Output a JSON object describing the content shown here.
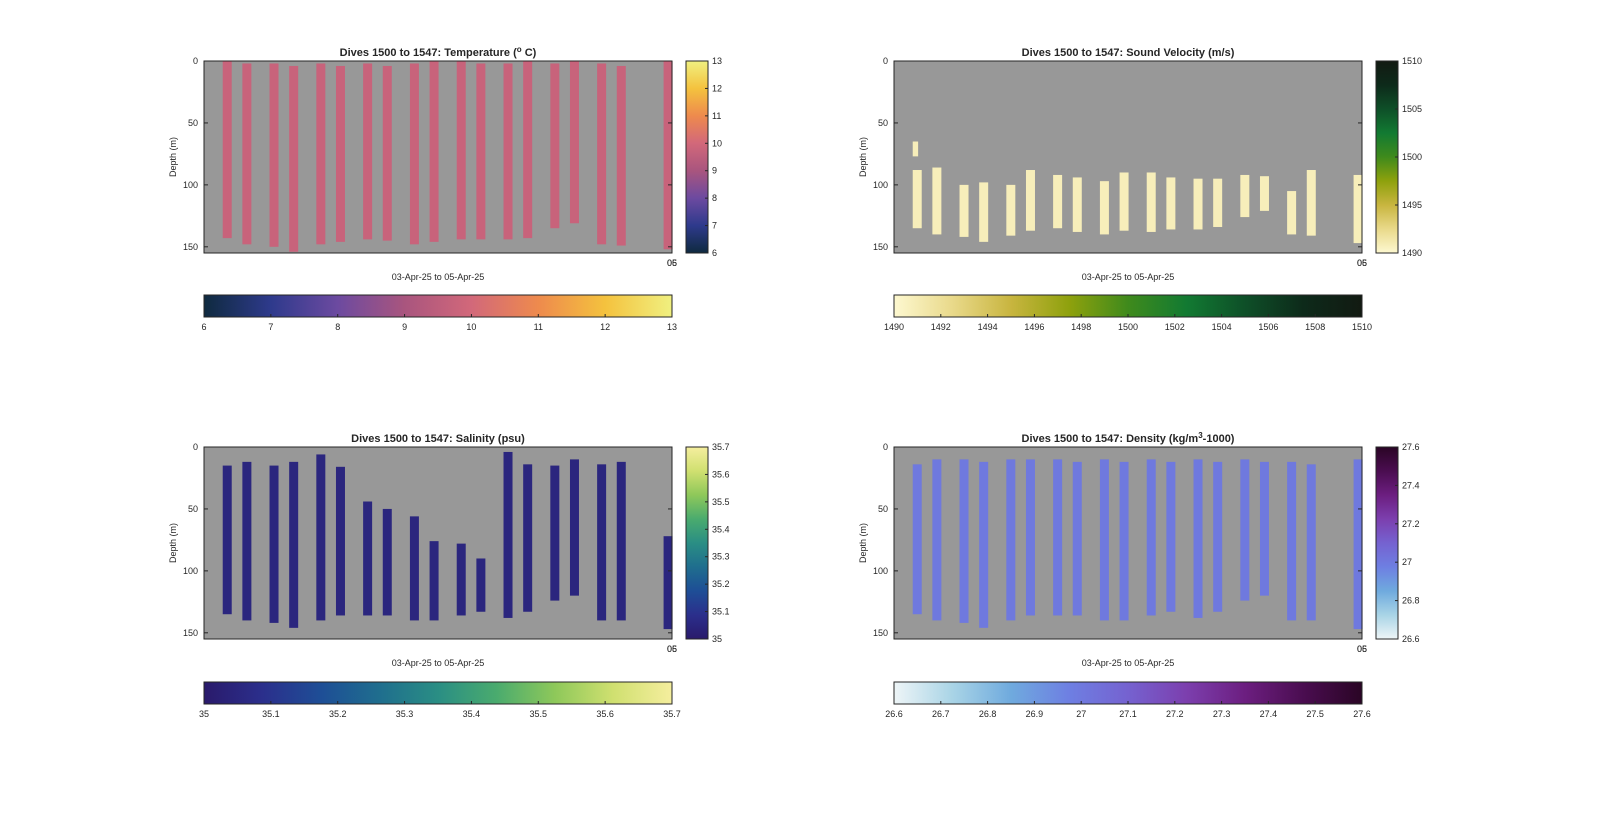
{
  "colors": {
    "background": "#ffffff",
    "nodata": "#989898",
    "axis": "#262626"
  },
  "chart_data": [
    {
      "type": "heatmap",
      "title": "Dives 1500 to 1547: Temperature (",
      "title_sup": "o",
      "title_tail": " C)",
      "xlabel": "03-Apr-25 to 05-Apr-25",
      "ylabel": "Depth (m)",
      "ylim": [
        155,
        0
      ],
      "yticks": [
        "0",
        "50",
        "100",
        "150"
      ],
      "xtick_labels": [
        "05",
        "06"
      ],
      "colormap": [
        "#0f2a3f",
        "#2e3a8c",
        "#6c4aa0",
        "#a9557e",
        "#d2687a",
        "#ee8a4d",
        "#f4c23e",
        "#f0f080"
      ],
      "clim": [
        6,
        13
      ],
      "colorbar_ticks": [
        "6",
        "7",
        "8",
        "9",
        "10",
        "11",
        "12",
        "13"
      ],
      "vertical_colorbar_ticks": [
        "6",
        "7",
        "8",
        "9",
        "10",
        "11",
        "12",
        "13"
      ],
      "field_value": 9.75,
      "columns": [
        {
          "x": 0.04,
          "top": 0,
          "bottom": 143
        },
        {
          "x": 0.082,
          "top": 2,
          "bottom": 148
        },
        {
          "x": 0.14,
          "top": 2,
          "bottom": 150
        },
        {
          "x": 0.182,
          "top": 4,
          "bottom": 154
        },
        {
          "x": 0.24,
          "top": 2,
          "bottom": 148
        },
        {
          "x": 0.282,
          "top": 4,
          "bottom": 146
        },
        {
          "x": 0.34,
          "top": 2,
          "bottom": 144
        },
        {
          "x": 0.382,
          "top": 4,
          "bottom": 145
        },
        {
          "x": 0.44,
          "top": 2,
          "bottom": 148
        },
        {
          "x": 0.482,
          "top": 0,
          "bottom": 146
        },
        {
          "x": 0.54,
          "top": 0,
          "bottom": 144
        },
        {
          "x": 0.582,
          "top": 2,
          "bottom": 144
        },
        {
          "x": 0.64,
          "top": 2,
          "bottom": 144
        },
        {
          "x": 0.682,
          "top": 0,
          "bottom": 143
        },
        {
          "x": 0.74,
          "top": 2,
          "bottom": 135
        },
        {
          "x": 0.782,
          "top": 0,
          "bottom": 131
        },
        {
          "x": 0.84,
          "top": 2,
          "bottom": 148
        },
        {
          "x": 0.882,
          "top": 4,
          "bottom": 149
        },
        {
          "x": 0.982,
          "top": 0,
          "bottom": 152
        }
      ]
    },
    {
      "type": "heatmap",
      "title": "Dives 1500 to 1547: Sound Velocity (m/s)",
      "title_sup": "",
      "title_tail": "",
      "xlabel": "03-Apr-25 to 05-Apr-25",
      "ylabel": "Depth (m)",
      "ylim": [
        155,
        0
      ],
      "yticks": [
        "0",
        "50",
        "100",
        "150"
      ],
      "xtick_labels": [
        "05",
        "06"
      ],
      "colormap": [
        "#fdf8d0",
        "#e9d98a",
        "#c8b53f",
        "#8ea10d",
        "#3f8a1c",
        "#127a32",
        "#0e4f28",
        "#0d2a1a",
        "#121a12"
      ],
      "clim": [
        1490,
        1510
      ],
      "colorbar_ticks": [
        "1490",
        "1492",
        "1494",
        "1496",
        "1498",
        "1500",
        "1502",
        "1504",
        "1506",
        "1508",
        "1510"
      ],
      "vertical_colorbar_ticks": [
        "1490",
        "1495",
        "1500",
        "1505",
        "1510"
      ],
      "field_value": 1490.8,
      "columns": [
        {
          "x": 0.04,
          "top": 88,
          "bottom": 135
        },
        {
          "x": 0.082,
          "top": 86,
          "bottom": 140
        },
        {
          "x": 0.14,
          "top": 100,
          "bottom": 142
        },
        {
          "x": 0.182,
          "top": 98,
          "bottom": 146
        },
        {
          "x": 0.24,
          "top": 100,
          "bottom": 141
        },
        {
          "x": 0.282,
          "top": 88,
          "bottom": 137
        },
        {
          "x": 0.34,
          "top": 92,
          "bottom": 135
        },
        {
          "x": 0.382,
          "top": 94,
          "bottom": 138
        },
        {
          "x": 0.44,
          "top": 97,
          "bottom": 140
        },
        {
          "x": 0.482,
          "top": 90,
          "bottom": 137
        },
        {
          "x": 0.54,
          "top": 90,
          "bottom": 138
        },
        {
          "x": 0.582,
          "top": 94,
          "bottom": 136
        },
        {
          "x": 0.64,
          "top": 95,
          "bottom": 136
        },
        {
          "x": 0.682,
          "top": 95,
          "bottom": 134
        },
        {
          "x": 0.74,
          "top": 92,
          "bottom": 126
        },
        {
          "x": 0.782,
          "top": 93,
          "bottom": 121
        },
        {
          "x": 0.84,
          "top": 105,
          "bottom": 140
        },
        {
          "x": 0.882,
          "top": 88,
          "bottom": 141
        },
        {
          "x": 0.982,
          "top": 92,
          "bottom": 147
        }
      ],
      "patches": [
        {
          "x": 0.04,
          "top": 65,
          "bottom": 77
        }
      ]
    },
    {
      "type": "heatmap",
      "title": "Dives 1500 to 1547: Salinity (psu)",
      "title_sup": "",
      "title_tail": "",
      "xlabel": "03-Apr-25 to 05-Apr-25",
      "ylabel": "Depth (m)",
      "ylim": [
        155,
        0
      ],
      "yticks": [
        "0",
        "50",
        "100",
        "150"
      ],
      "xtick_labels": [
        "05",
        "06"
      ],
      "colormap": [
        "#2a1a6b",
        "#2b2f8c",
        "#1e4e96",
        "#1f6e8e",
        "#2a8e84",
        "#4aab6e",
        "#8ec85a",
        "#d0e070",
        "#f5ee9e"
      ],
      "clim": [
        35,
        35.7
      ],
      "colorbar_ticks": [
        "35",
        "35.1",
        "35.2",
        "35.3",
        "35.4",
        "35.5",
        "35.6",
        "35.7"
      ],
      "vertical_colorbar_ticks": [
        "35",
        "35.1",
        "35.2",
        "35.3",
        "35.4",
        "35.5",
        "35.6",
        "35.7"
      ],
      "field_value": 35.05,
      "columns": [
        {
          "x": 0.04,
          "top": 15,
          "bottom": 135
        },
        {
          "x": 0.082,
          "top": 12,
          "bottom": 140
        },
        {
          "x": 0.14,
          "top": 15,
          "bottom": 142
        },
        {
          "x": 0.182,
          "top": 12,
          "bottom": 146
        },
        {
          "x": 0.24,
          "top": 6,
          "bottom": 140
        },
        {
          "x": 0.282,
          "top": 16,
          "bottom": 136
        },
        {
          "x": 0.34,
          "top": 44,
          "bottom": 136
        },
        {
          "x": 0.382,
          "top": 50,
          "bottom": 136
        },
        {
          "x": 0.44,
          "top": 56,
          "bottom": 140
        },
        {
          "x": 0.482,
          "top": 76,
          "bottom": 140
        },
        {
          "x": 0.54,
          "top": 78,
          "bottom": 136
        },
        {
          "x": 0.582,
          "top": 90,
          "bottom": 133
        },
        {
          "x": 0.64,
          "top": 4,
          "bottom": 138
        },
        {
          "x": 0.682,
          "top": 14,
          "bottom": 133
        },
        {
          "x": 0.74,
          "top": 15,
          "bottom": 124
        },
        {
          "x": 0.782,
          "top": 10,
          "bottom": 120
        },
        {
          "x": 0.84,
          "top": 14,
          "bottom": 140
        },
        {
          "x": 0.882,
          "top": 12,
          "bottom": 140
        },
        {
          "x": 0.982,
          "top": 72,
          "bottom": 147
        }
      ]
    },
    {
      "type": "heatmap",
      "title": "Dives 1500 to 1547: Density (kg/m",
      "title_sup": "3",
      "title_tail": "-1000)",
      "xlabel": "03-Apr-25 to 05-Apr-25",
      "ylabel": "Depth (m)",
      "ylim": [
        155,
        0
      ],
      "yticks": [
        "0",
        "50",
        "100",
        "150"
      ],
      "xtick_labels": [
        "05",
        "06"
      ],
      "colormap": [
        "#eef5f7",
        "#a9d4e6",
        "#6faade",
        "#6e7fe2",
        "#7562d0",
        "#7c3fae",
        "#6c1e80",
        "#4a0d50",
        "#2a0525"
      ],
      "clim": [
        26.6,
        27.6
      ],
      "colorbar_ticks": [
        "26.6",
        "26.7",
        "26.8",
        "26.9",
        "27",
        "27.1",
        "27.2",
        "27.3",
        "27.4",
        "27.5",
        "27.6"
      ],
      "vertical_colorbar_ticks": [
        "26.6",
        "26.8",
        "27",
        "27.2",
        "27.4",
        "27.6"
      ],
      "field_value": 27.0,
      "columns": [
        {
          "x": 0.04,
          "top": 14,
          "bottom": 135
        },
        {
          "x": 0.082,
          "top": 10,
          "bottom": 140
        },
        {
          "x": 0.14,
          "top": 10,
          "bottom": 142
        },
        {
          "x": 0.182,
          "top": 12,
          "bottom": 146
        },
        {
          "x": 0.24,
          "top": 10,
          "bottom": 140
        },
        {
          "x": 0.282,
          "top": 10,
          "bottom": 136
        },
        {
          "x": 0.34,
          "top": 10,
          "bottom": 136
        },
        {
          "x": 0.382,
          "top": 12,
          "bottom": 136
        },
        {
          "x": 0.44,
          "top": 10,
          "bottom": 140
        },
        {
          "x": 0.482,
          "top": 12,
          "bottom": 140
        },
        {
          "x": 0.54,
          "top": 10,
          "bottom": 136
        },
        {
          "x": 0.582,
          "top": 12,
          "bottom": 133
        },
        {
          "x": 0.64,
          "top": 10,
          "bottom": 138
        },
        {
          "x": 0.682,
          "top": 12,
          "bottom": 133
        },
        {
          "x": 0.74,
          "top": 10,
          "bottom": 124
        },
        {
          "x": 0.782,
          "top": 12,
          "bottom": 120
        },
        {
          "x": 0.84,
          "top": 12,
          "bottom": 140
        },
        {
          "x": 0.882,
          "top": 14,
          "bottom": 140
        },
        {
          "x": 0.982,
          "top": 10,
          "bottom": 147
        }
      ]
    }
  ]
}
